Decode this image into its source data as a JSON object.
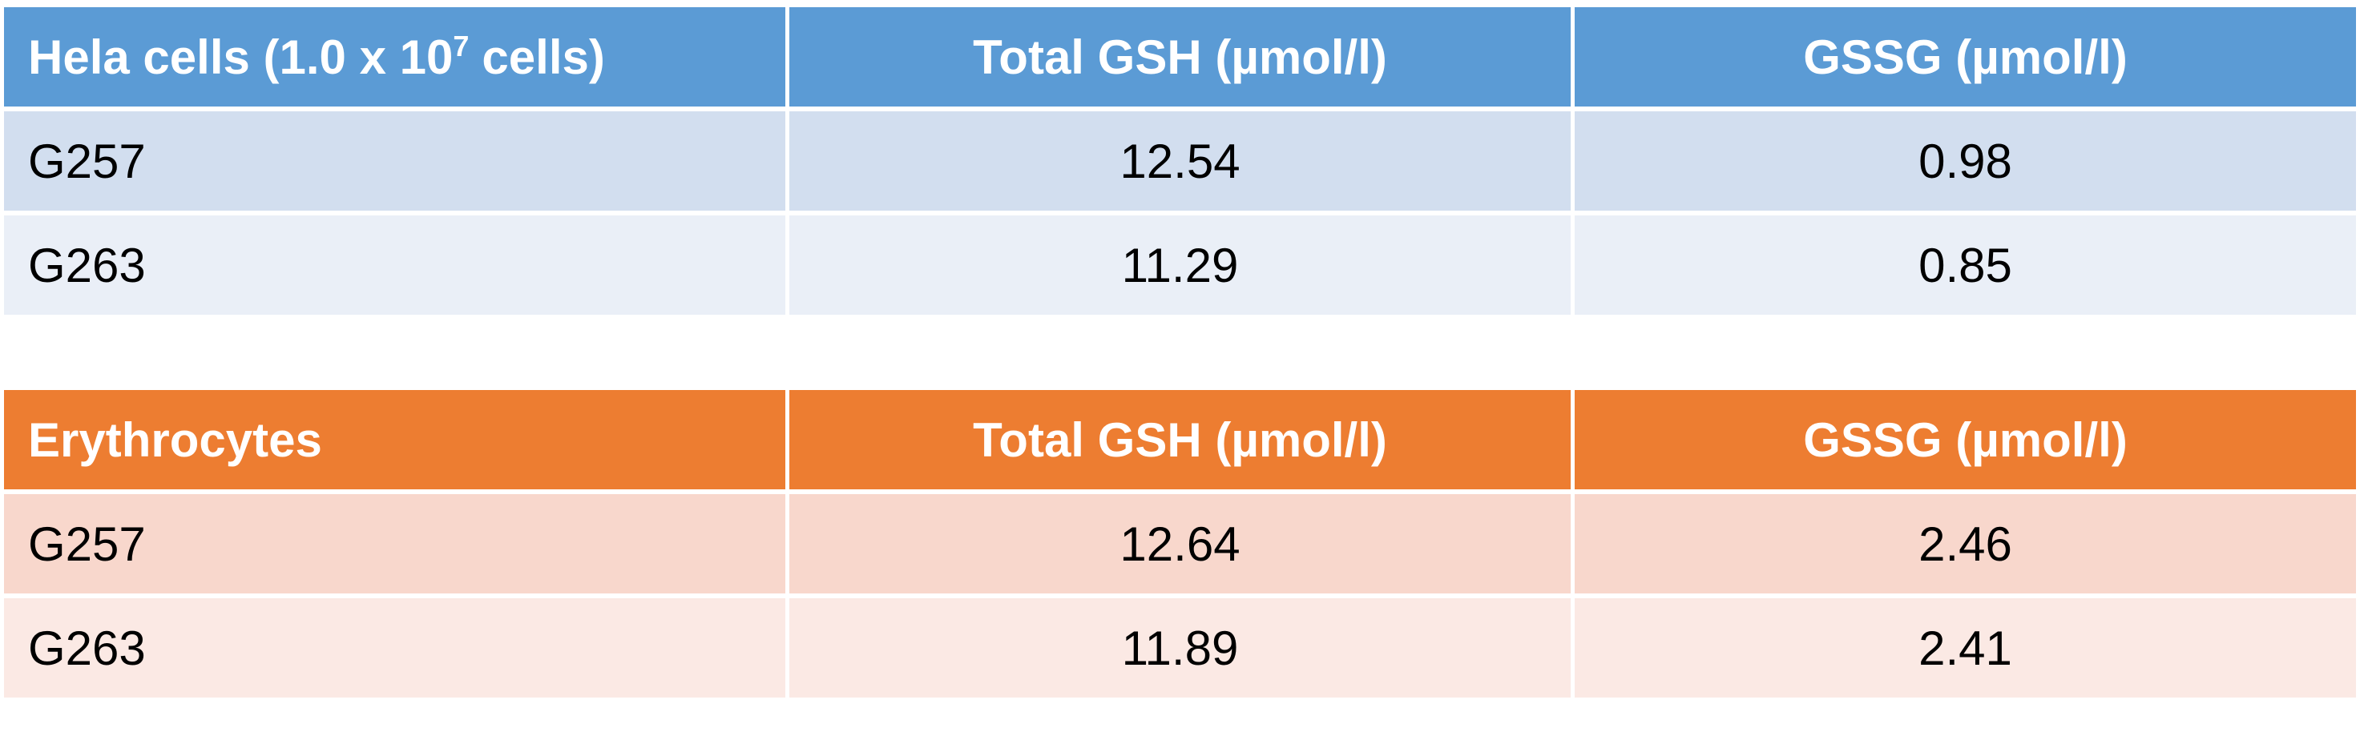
{
  "tables": [
    {
      "header": [
        [
          "Hela cells (1.0 x 10",
          "7",
          "cells)"
        ],
        "Total GSH (µmol/l)",
        "GSSG (µmol/l)"
      ],
      "rows": [
        [
          "G257",
          12.54,
          0.98
        ],
        [
          "G263",
          11.29,
          0.85
        ]
      ]
    },
    {
      "header": [
        "Erythrocytes",
        "Total GSH (µmol/l)",
        "GSSG (µmol/l)"
      ],
      "rows": [
        [
          "G257",
          12.64,
          2.46
        ],
        [
          "G263",
          11.89,
          2.41
        ]
      ]
    }
  ]
}
